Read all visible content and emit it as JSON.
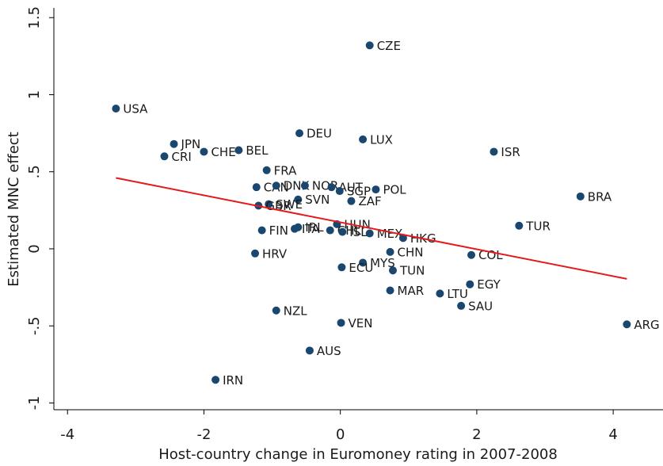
{
  "chart_data": {
    "type": "scatter",
    "x_label": "Host-country change in Euromoney rating in 2007-2008",
    "y_label": "Estimated MNC effect",
    "xlim": [
      -4.2,
      4.73
    ],
    "ylim": [
      -1.044,
      1.563
    ],
    "xticks": [
      -4,
      -2,
      0,
      2,
      4
    ],
    "yticks": [
      -1,
      {
        "value": -0.5,
        "label": "-.5"
      },
      0,
      {
        "value": 0.5,
        "label": ".5"
      },
      1,
      1.5
    ],
    "series": [
      {
        "color": "#1a476f",
        "labels": [
          "CZE",
          "USA",
          "JPN",
          "CRI",
          "CHE",
          "BEL",
          "DEU",
          "LUX",
          "ISR",
          "FRA",
          "CAN",
          "DNK",
          "NOR",
          "AUT",
          "SGP",
          "POL",
          "SVN",
          "ZAF",
          "BRA",
          "SWE",
          "GBR",
          "TUR",
          "HUN",
          "IRL",
          "ITA",
          "FIN",
          "CHL",
          "ISL",
          "MEX",
          "HKG",
          "CHN",
          "COL",
          "HRV",
          "MYS",
          "ECU",
          "TUN",
          "EGY",
          "MAR",
          "LTU",
          "SAU",
          "NZL",
          "VEN",
          "ARG",
          "AUS",
          "IRN"
        ],
        "x": [
          0.43,
          -3.29,
          -2.44,
          -2.58,
          -2.0,
          -1.49,
          -0.6,
          0.33,
          2.25,
          -1.08,
          -1.23,
          -0.94,
          -0.52,
          -0.13,
          -0.01,
          0.52,
          -0.62,
          0.16,
          3.52,
          -1.05,
          -1.2,
          2.62,
          -0.05,
          -0.62,
          -0.67,
          -1.15,
          -0.15,
          0.03,
          0.43,
          0.92,
          0.73,
          1.92,
          -1.25,
          0.33,
          0.02,
          0.77,
          1.9,
          0.73,
          1.46,
          1.77,
          -0.94,
          0.01,
          4.2,
          -0.45,
          -1.83
        ],
        "values": [
          1.32,
          0.91,
          0.68,
          0.6,
          0.63,
          0.64,
          0.75,
          0.71,
          0.63,
          0.51,
          0.4,
          0.41,
          0.41,
          0.4,
          0.375,
          0.385,
          0.32,
          0.31,
          0.34,
          0.29,
          0.28,
          0.15,
          0.16,
          0.14,
          0.13,
          0.12,
          0.12,
          0.11,
          0.1,
          0.07,
          -0.02,
          -0.04,
          -0.03,
          -0.09,
          -0.12,
          -0.14,
          -0.23,
          -0.27,
          -0.29,
          -0.37,
          -0.4,
          -0.48,
          -0.49,
          -0.66,
          -0.85
        ]
      }
    ],
    "fit_line": {
      "color": "#e41a1c",
      "x": [
        -3.29,
        4.2
      ],
      "values": [
        0.46,
        -0.195
      ]
    }
  }
}
